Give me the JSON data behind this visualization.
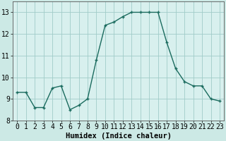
{
  "x": [
    0,
    1,
    2,
    3,
    4,
    5,
    6,
    7,
    8,
    9,
    10,
    11,
    12,
    13,
    14,
    15,
    16,
    17,
    18,
    19,
    20,
    21,
    22,
    23
  ],
  "y": [
    9.3,
    9.3,
    8.6,
    8.6,
    9.5,
    9.6,
    8.5,
    8.7,
    9.0,
    10.8,
    12.4,
    12.55,
    12.8,
    13.0,
    13.0,
    13.0,
    13.0,
    11.6,
    10.4,
    9.8,
    9.6,
    9.6,
    9.0,
    8.9
  ],
  "line_color": "#1a6b5e",
  "bg_color": "#cce9e5",
  "grid_color": "#a0ccc8",
  "plot_bg": "#d8f0ee",
  "xlabel": "Humidex (Indice chaleur)",
  "xlim": [
    -0.5,
    23.5
  ],
  "ylim": [
    8.0,
    13.5
  ],
  "yticks": [
    8,
    9,
    10,
    11,
    12,
    13
  ],
  "xticks": [
    0,
    1,
    2,
    3,
    4,
    5,
    6,
    7,
    8,
    9,
    10,
    11,
    12,
    13,
    14,
    15,
    16,
    17,
    18,
    19,
    20,
    21,
    22,
    23
  ],
  "marker_size": 2.5,
  "line_width": 1.0,
  "tick_fontsize": 7,
  "xlabel_fontsize": 7.5
}
